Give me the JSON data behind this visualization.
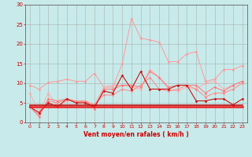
{
  "x": [
    0,
    1,
    2,
    3,
    4,
    5,
    6,
    7,
    8,
    9,
    10,
    11,
    12,
    13,
    14,
    15,
    16,
    17,
    18,
    19,
    20,
    21,
    22,
    23
  ],
  "series": [
    {
      "name": "light_pink_1",
      "color": "#ff9999",
      "linewidth": 0.7,
      "marker": "D",
      "markersize": 1.5,
      "values": [
        9.5,
        8.5,
        10.2,
        10.5,
        11.0,
        10.5,
        10.5,
        12.5,
        9.0,
        9.0,
        15.0,
        26.5,
        21.5,
        21.0,
        20.5,
        15.5,
        15.5,
        17.5,
        18.0,
        10.5,
        11.0,
        13.5,
        13.5,
        14.5
      ]
    },
    {
      "name": "light_pink_2",
      "color": "#ffaaaa",
      "linewidth": 0.7,
      "marker": "D",
      "markersize": 1.5,
      "values": [
        7.5,
        2.5,
        7.5,
        4.0,
        5.5,
        5.5,
        5.0,
        4.5,
        9.0,
        9.5,
        9.5,
        9.0,
        8.5,
        13.5,
        11.5,
        8.5,
        8.0,
        9.0,
        8.5,
        10.0,
        10.5,
        8.5,
        9.5,
        10.5
      ]
    },
    {
      "name": "pink_3",
      "color": "#ff7777",
      "linewidth": 0.7,
      "marker": "D",
      "markersize": 1.5,
      "values": [
        4.0,
        1.5,
        6.0,
        5.5,
        6.0,
        5.0,
        5.5,
        3.5,
        8.5,
        8.5,
        9.5,
        9.5,
        9.0,
        13.0,
        11.5,
        9.0,
        9.5,
        9.5,
        9.5,
        7.5,
        9.0,
        8.0,
        9.5,
        10.5
      ]
    },
    {
      "name": "mid_pink_4",
      "color": "#ff8888",
      "linewidth": 0.7,
      "marker": "D",
      "markersize": 1.5,
      "values": [
        4.0,
        2.0,
        5.5,
        5.0,
        6.0,
        5.5,
        5.5,
        4.5,
        7.0,
        7.0,
        8.5,
        8.0,
        9.5,
        11.5,
        8.5,
        8.0,
        8.5,
        9.5,
        8.5,
        6.5,
        7.5,
        7.5,
        8.5,
        10.0
      ]
    },
    {
      "name": "dark_red_5",
      "color": "#cc1111",
      "linewidth": 0.8,
      "marker": "D",
      "markersize": 1.5,
      "values": [
        4.0,
        2.5,
        5.0,
        4.0,
        6.0,
        5.0,
        5.0,
        4.0,
        8.0,
        7.5,
        12.0,
        8.5,
        13.0,
        8.5,
        8.5,
        8.5,
        9.5,
        9.5,
        5.5,
        5.5,
        6.0,
        6.0,
        4.5,
        6.0
      ]
    },
    {
      "name": "red_flat_6",
      "color": "#ee2222",
      "linewidth": 1.8,
      "marker": null,
      "markersize": 0,
      "values": [
        4.0,
        4.0,
        4.0,
        4.0,
        4.0,
        4.0,
        4.0,
        4.0,
        4.0,
        4.0,
        4.0,
        4.0,
        4.0,
        4.0,
        4.0,
        4.0,
        4.0,
        4.0,
        4.0,
        4.0,
        4.0,
        4.0,
        4.0,
        4.0
      ]
    },
    {
      "name": "red_flat_7",
      "color": "#bb1111",
      "linewidth": 1.2,
      "marker": null,
      "markersize": 0,
      "values": [
        4.5,
        4.5,
        4.5,
        4.5,
        4.5,
        4.5,
        4.5,
        4.5,
        4.5,
        4.5,
        4.5,
        4.5,
        4.5,
        4.5,
        4.5,
        4.5,
        4.5,
        4.5,
        4.5,
        4.5,
        4.5,
        4.5,
        4.5,
        4.5
      ]
    }
  ],
  "xlabel": "Vent moyen/en rafales ( km/h )",
  "xlim": [
    -0.5,
    23.5
  ],
  "ylim": [
    0,
    30
  ],
  "yticks": [
    0,
    5,
    10,
    15,
    20,
    25,
    30
  ],
  "xticks": [
    0,
    1,
    2,
    3,
    4,
    5,
    6,
    7,
    8,
    9,
    10,
    11,
    12,
    13,
    14,
    15,
    16,
    17,
    18,
    19,
    20,
    21,
    22,
    23
  ],
  "bg_color": "#c8eaea",
  "grid_color": "#999999",
  "xlabel_color": "#cc0000",
  "tick_color": "#cc0000",
  "axis_color": "#666666"
}
